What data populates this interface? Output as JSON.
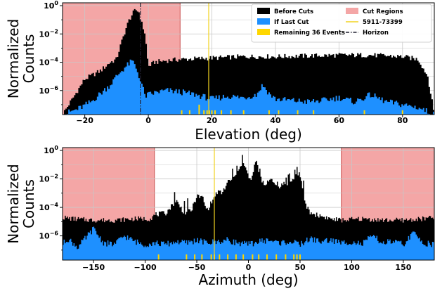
{
  "chart_data": [
    {
      "type": "histogram",
      "xlabel": "Elevation (deg)",
      "ylabel": [
        "Normalized",
        "Counts"
      ],
      "xlim": [
        -27,
        90
      ],
      "ylim_log10": [
        -7.7,
        0.2
      ],
      "yscale": "log",
      "grid": true,
      "x_ticks": [
        -20,
        0,
        20,
        40,
        60,
        80
      ],
      "x_tick_labels": [
        "−20",
        "0",
        "20",
        "40",
        "60",
        "80"
      ],
      "y_ticks_log10": [
        0,
        -2,
        -4,
        -6
      ],
      "y_tick_labels": [
        [
          "10",
          "0"
        ],
        [
          "10",
          "−2"
        ],
        [
          "10",
          "−4"
        ],
        [
          "10",
          "−6"
        ]
      ],
      "cut_regions": [
        [
          -27,
          10
        ]
      ],
      "candidate_line": 19,
      "reference_lines": [
        {
          "name": "Horizon",
          "x": -2.5,
          "style": "dashdot"
        }
      ],
      "legend": {
        "position": "top-right",
        "entries": [
          "Before Cuts",
          "If Last Cut",
          "Remaining 36 Events",
          "Cut Regions",
          "5911-73399",
          "Horizon"
        ]
      },
      "series": [
        {
          "name": "Before Cuts",
          "x": [
            -27,
            -20,
            -15,
            -12,
            -10,
            -9,
            -8,
            -7,
            -6,
            -5,
            -4,
            -3,
            -2,
            -1,
            0,
            2,
            5,
            10,
            20,
            30,
            40,
            50,
            60,
            70,
            80,
            85,
            88,
            90
          ],
          "log10_y": [
            -7.7,
            -5.2,
            -4.6,
            -4.0,
            -3.8,
            -3.0,
            -2.3,
            -1.6,
            -1.0,
            -0.6,
            -0.3,
            -0.4,
            -1.3,
            -2.0,
            -4.3,
            -4.0,
            -3.9,
            -3.8,
            -3.7,
            -3.6,
            -3.6,
            -3.55,
            -3.5,
            -3.5,
            -3.6,
            -3.8,
            -5.0,
            -7.7
          ]
        },
        {
          "name": "If Last Cut",
          "x": [
            -27,
            -22,
            -18,
            -15,
            -12,
            -10,
            -8,
            -6,
            -5,
            -4,
            -3,
            -2,
            -1,
            0,
            3,
            6,
            10,
            15,
            20,
            25,
            30,
            34,
            36,
            38,
            40,
            45,
            50,
            55,
            60,
            65,
            70,
            75,
            80,
            85,
            90
          ],
          "log10_y": [
            -7.7,
            -7.3,
            -6.8,
            -6.2,
            -5.6,
            -5.0,
            -4.5,
            -4.1,
            -3.9,
            -4.3,
            -4.9,
            -5.6,
            -6.4,
            -6.3,
            -6.1,
            -6.0,
            -6.1,
            -6.3,
            -6.6,
            -6.4,
            -6.5,
            -6.3,
            -5.6,
            -6.2,
            -6.6,
            -6.7,
            -6.8,
            -6.7,
            -6.5,
            -6.8,
            -6.3,
            -6.8,
            -7.0,
            -7.2,
            -7.7
          ]
        },
        {
          "name": "Remaining 36 Events",
          "x": [
            10.5,
            13,
            16,
            17.5,
            18.5,
            19.2,
            20,
            21,
            23,
            26,
            30,
            38,
            41,
            47,
            52,
            68,
            80
          ],
          "log10_y": [
            -7.4,
            -7.4,
            -7.0,
            -7.4,
            -7.4,
            -7.4,
            -7.4,
            -7.4,
            -7.4,
            -7.4,
            -7.4,
            -7.4,
            -7.4,
            -7.4,
            -7.4,
            -7.4,
            -7.4
          ]
        }
      ]
    },
    {
      "type": "histogram",
      "xlabel": "Azimuth (deg)",
      "ylabel": [
        "Normalized",
        "Counts"
      ],
      "xlim": [
        -180,
        180
      ],
      "ylim_log10": [
        -7.7,
        0.2
      ],
      "yscale": "log",
      "grid": true,
      "x_ticks": [
        -150,
        -100,
        -50,
        0,
        50,
        100,
        150
      ],
      "x_tick_labels": [
        "−150",
        "−100",
        "−50",
        "0",
        "50",
        "100",
        "150"
      ],
      "y_ticks_log10": [
        0,
        -2,
        -4,
        -6
      ],
      "y_tick_labels": [
        [
          "10",
          "0"
        ],
        [
          "10",
          "−2"
        ],
        [
          "10",
          "−4"
        ],
        [
          "10",
          "−6"
        ]
      ],
      "cut_regions": [
        [
          -180,
          -91
        ],
        [
          90,
          180
        ]
      ],
      "candidate_line": -33,
      "series": [
        {
          "name": "Before Cuts",
          "x": [
            -180,
            -170,
            -150,
            -130,
            -110,
            -95,
            -90,
            -80,
            -70,
            -62,
            -55,
            -50,
            -45,
            -40,
            -30,
            -25,
            -20,
            -15,
            -10,
            -8,
            -5,
            -3,
            0,
            3,
            5,
            8,
            10,
            15,
            20,
            25,
            30,
            35,
            40,
            45,
            50,
            55,
            60,
            70,
            80,
            90,
            110,
            130,
            150,
            170,
            180
          ],
          "log10_y": [
            -4.7,
            -4.8,
            -4.9,
            -4.9,
            -4.8,
            -4.8,
            -4.5,
            -4.4,
            -3.5,
            -4.4,
            -4.2,
            -3.2,
            -3.3,
            -4.2,
            -2.9,
            -3.0,
            -2.2,
            -2.0,
            -1.6,
            -1.0,
            -0.9,
            -1.2,
            -1.8,
            -2.2,
            -1.3,
            -0.7,
            -1.5,
            -2.5,
            -2.0,
            -2.3,
            -2.5,
            -2.3,
            -2.5,
            -1.8,
            -1.6,
            -3.8,
            -4.4,
            -4.6,
            -4.8,
            -4.9,
            -4.8,
            -4.9,
            -4.9,
            -4.8,
            -4.7
          ]
        },
        {
          "name": "If Last Cut",
          "x": [
            -180,
            -175,
            -165,
            -150,
            -140,
            -130,
            -120,
            -110,
            -100,
            -90,
            -80,
            -70,
            -60,
            -50,
            -40,
            -30,
            -20,
            -10,
            0,
            10,
            20,
            30,
            40,
            50,
            60,
            70,
            80,
            90,
            100,
            110,
            120,
            130,
            140,
            150,
            160,
            170,
            180
          ],
          "log10_y": [
            -6.6,
            -6.2,
            -6.8,
            -5.5,
            -6.5,
            -6.6,
            -6.0,
            -6.4,
            -6.6,
            -6.5,
            -6.6,
            -6.4,
            -6.5,
            -6.3,
            -6.5,
            -6.4,
            -6.3,
            -6.5,
            -6.6,
            -6.4,
            -6.3,
            -6.5,
            -6.4,
            -6.6,
            -6.2,
            -6.4,
            -6.3,
            -6.5,
            -6.4,
            -6.6,
            -6.0,
            -6.5,
            -6.4,
            -6.6,
            -5.8,
            -6.5,
            -6.6
          ]
        },
        {
          "name": "Remaining 36 Events",
          "x": [
            -87,
            -60,
            -52,
            -45,
            -36,
            -33,
            -28,
            -20,
            -12,
            -5,
            4,
            10,
            18,
            27,
            36,
            44,
            47,
            50
          ],
          "log10_y": [
            -7.3,
            -7.3,
            -7.3,
            -7.3,
            -7.3,
            -7.3,
            -7.3,
            -7.3,
            -7.3,
            -7.3,
            -7.3,
            -7.3,
            -7.3,
            -7.3,
            -7.3,
            -7.3,
            -7.3,
            -7.3
          ]
        }
      ]
    }
  ],
  "colors": {
    "before_cuts": "#000000",
    "if_last_cut": "#1e90ff",
    "remaining": "#ffd700",
    "cut_regions": "#f4a6a6",
    "candidate": "#f2d320",
    "cut_edge": "#c8504e"
  }
}
